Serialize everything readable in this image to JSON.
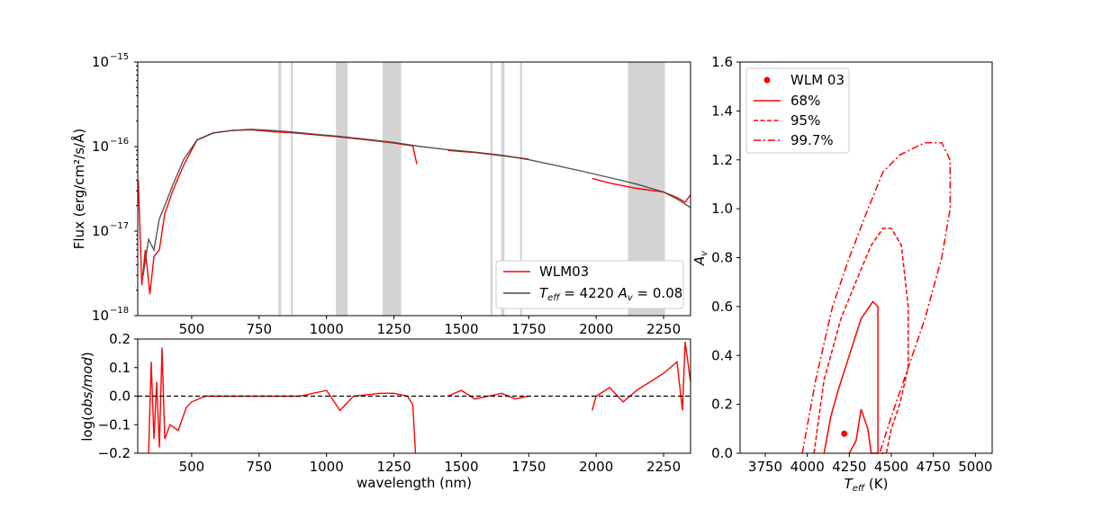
{
  "chart_data": [
    {
      "type": "line",
      "panel": "spectrum",
      "xlabel": "",
      "ylabel": "Flux (erg/cm²/s/Å)",
      "yscale": "log",
      "xlim": [
        300,
        2350
      ],
      "ylim": [
        1e-18,
        1e-15
      ],
      "x_ticks": [
        "500",
        "750",
        "1000",
        "1250",
        "1500",
        "1750",
        "2000",
        "2250"
      ],
      "y_ticks": [
        {
          "base": "10",
          "exp": "−15",
          "value": 1e-15
        },
        {
          "base": "10",
          "exp": "−16",
          "value": 1e-16
        },
        {
          "base": "10",
          "exp": "−17",
          "value": 1e-17
        },
        {
          "base": "10",
          "exp": "−18",
          "value": 1e-18
        }
      ],
      "masked_bands_nm": [
        [
          822,
          832
        ],
        [
          868,
          875
        ],
        [
          1035,
          1078
        ],
        [
          1208,
          1277
        ],
        [
          1608,
          1616
        ],
        [
          1648,
          1660
        ],
        [
          1718,
          1725
        ],
        [
          2118,
          2255
        ]
      ],
      "legend": {
        "location": "lower-right",
        "entries": [
          {
            "label": "WLM03",
            "color": "#ff0000"
          },
          {
            "label": "T_eff = 4220  A_v = 0.08",
            "color": "#444444"
          }
        ]
      },
      "series": [
        {
          "name": "WLM03",
          "color": "#ff0000",
          "x": [
            302,
            315,
            328,
            345,
            360,
            380,
            400,
            430,
            470,
            520,
            580,
            650,
            720,
            800,
            880,
            960,
            1050,
            1150,
            1250,
            1320,
            1335
          ],
          "y": [
            4e-17,
            2.3e-18,
            6e-18,
            1.8e-18,
            5e-18,
            6e-18,
            1.6e-17,
            3e-17,
            6e-17,
            1.2e-16,
            1.45e-16,
            1.55e-16,
            1.58e-16,
            1.5e-16,
            1.45e-16,
            1.38e-16,
            1.3e-16,
            1.2e-16,
            1.1e-16,
            1.02e-16,
            6.2e-17
          ]
        },
        {
          "name": "WLM03",
          "color": "#ff0000",
          "x": [
            1450,
            1550,
            1650,
            1750
          ],
          "y": [
            9e-17,
            8.5e-17,
            7.8e-17,
            7.1e-17
          ]
        },
        {
          "name": "WLM03",
          "color": "#ff0000",
          "x": [
            1985,
            2050,
            2150,
            2250,
            2300,
            2330,
            2350
          ],
          "y": [
            4.2e-17,
            3.7e-17,
            3.2e-17,
            2.9e-17,
            2.5e-17,
            2.2e-17,
            2.7e-17
          ]
        },
        {
          "name": "T_eff = 4220  A_v = 0.08",
          "color": "#444444",
          "x": [
            320,
            340,
            360,
            380,
            400,
            430,
            470,
            520,
            580,
            650,
            720,
            800,
            880,
            960,
            1050,
            1150,
            1250,
            1350,
            1450,
            1550,
            1650,
            1750,
            1850,
            1950,
            2050,
            2150,
            2250,
            2300,
            2350
          ],
          "y": [
            3e-18,
            8e-18,
            6e-18,
            1.4e-17,
            2e-17,
            3.5e-17,
            7e-17,
            1.2e-16,
            1.45e-16,
            1.55e-16,
            1.6e-16,
            1.55e-16,
            1.48e-16,
            1.4e-16,
            1.32e-16,
            1.22e-16,
            1.12e-16,
            1e-16,
            9.2e-17,
            8.6e-17,
            7.9e-17,
            7e-17,
            6e-17,
            5.1e-17,
            4.3e-17,
            3.6e-17,
            2.9e-17,
            2.4e-17,
            1.9e-17
          ]
        }
      ]
    },
    {
      "type": "line",
      "panel": "residuals",
      "xlabel": "wavelength (nm)",
      "ylabel": "log(obs/mod)",
      "xlim": [
        300,
        2350
      ],
      "ylim": [
        -0.2,
        0.2
      ],
      "x_ticks": [
        "500",
        "750",
        "1000",
        "1250",
        "1500",
        "1750",
        "2000",
        "2250"
      ],
      "y_ticks": [
        "0.2",
        "0.1",
        "0.0",
        "−0.1",
        "−0.2"
      ],
      "reference_line": 0.0,
      "series": [
        {
          "name": "WLM03",
          "color": "#ff0000",
          "segments": [
            {
              "x": [
                340,
                350,
                360,
                370,
                380,
                390,
                400,
                420,
                450,
                480,
                500,
                550,
                600,
                700,
                800,
                900,
                1000,
                1050,
                1100,
                1200,
                1250,
                1300,
                1320,
                1330
              ],
              "y": [
                -0.2,
                0.12,
                -0.15,
                0.05,
                -0.18,
                0.17,
                -0.15,
                -0.1,
                -0.12,
                -0.04,
                -0.02,
                0.0,
                0.0,
                0.0,
                0.0,
                0.0,
                0.02,
                -0.05,
                0.0,
                0.01,
                0.01,
                0.0,
                -0.03,
                -0.2
              ]
            },
            {
              "x": [
                1450,
                1500,
                1550,
                1600,
                1650,
                1700,
                1750
              ],
              "y": [
                0.0,
                0.02,
                -0.01,
                0.0,
                0.01,
                -0.01,
                0.0
              ]
            },
            {
              "x": [
                1985,
                2000,
                2050,
                2100,
                2150,
                2200,
                2250,
                2300,
                2320,
                2330,
                2350
              ],
              "y": [
                -0.05,
                0.0,
                0.03,
                -0.02,
                0.02,
                0.05,
                0.08,
                0.12,
                -0.05,
                0.19,
                0.05
              ]
            }
          ]
        }
      ]
    },
    {
      "type": "line",
      "panel": "contours",
      "xlabel": "T_eff (K)",
      "ylabel": "A_v",
      "xlim": [
        3600,
        5100
      ],
      "ylim": [
        0.0,
        1.6
      ],
      "x_ticks": [
        "3750",
        "4000",
        "4250",
        "4500",
        "4750",
        "5000"
      ],
      "y_ticks": [
        "0.0",
        "0.2",
        "0.4",
        "0.6",
        "0.8",
        "1.0",
        "1.2",
        "1.4",
        "1.6"
      ],
      "legend": {
        "location": "upper-left",
        "entries": [
          {
            "label": "WLM 03",
            "style": "point"
          },
          {
            "label": "68%",
            "style": "solid"
          },
          {
            "label": "95%",
            "style": "dashed"
          },
          {
            "label": "99.7%",
            "style": "dashdot"
          }
        ]
      },
      "point": {
        "x": 4220,
        "y": 0.08,
        "color": "#ff0000"
      },
      "series": [
        {
          "name": "68%",
          "style": "solid",
          "color": "#ff0000",
          "x": [
            4100,
            4140,
            4180,
            4250,
            4320,
            4390,
            4420,
            4420,
            4380,
            4360,
            4320,
            4290,
            4250
          ],
          "y": [
            0.0,
            0.15,
            0.25,
            0.4,
            0.55,
            0.62,
            0.6,
            0.0,
            0.0,
            0.1,
            0.18,
            0.05,
            0.0
          ]
        },
        {
          "name": "95%",
          "style": "dashed",
          "color": "#ff0000",
          "x": [
            4040,
            4100,
            4200,
            4300,
            4380,
            4450,
            4500,
            4560,
            4600,
            4600,
            4550,
            4500,
            4470,
            4440
          ],
          "y": [
            0.0,
            0.3,
            0.55,
            0.72,
            0.85,
            0.92,
            0.92,
            0.85,
            0.6,
            0.35,
            0.2,
            0.1,
            0.0,
            0.0
          ]
        },
        {
          "name": "99.7%",
          "style": "dashdot",
          "color": "#ff0000",
          "x": [
            3970,
            4050,
            4150,
            4250,
            4350,
            4450,
            4550,
            4700,
            4800,
            4850,
            4850,
            4800,
            4700,
            4600,
            4500,
            4430
          ],
          "y": [
            0.0,
            0.3,
            0.6,
            0.8,
            0.98,
            1.15,
            1.22,
            1.27,
            1.27,
            1.2,
            1.0,
            0.8,
            0.55,
            0.35,
            0.15,
            0.0
          ]
        }
      ]
    }
  ]
}
